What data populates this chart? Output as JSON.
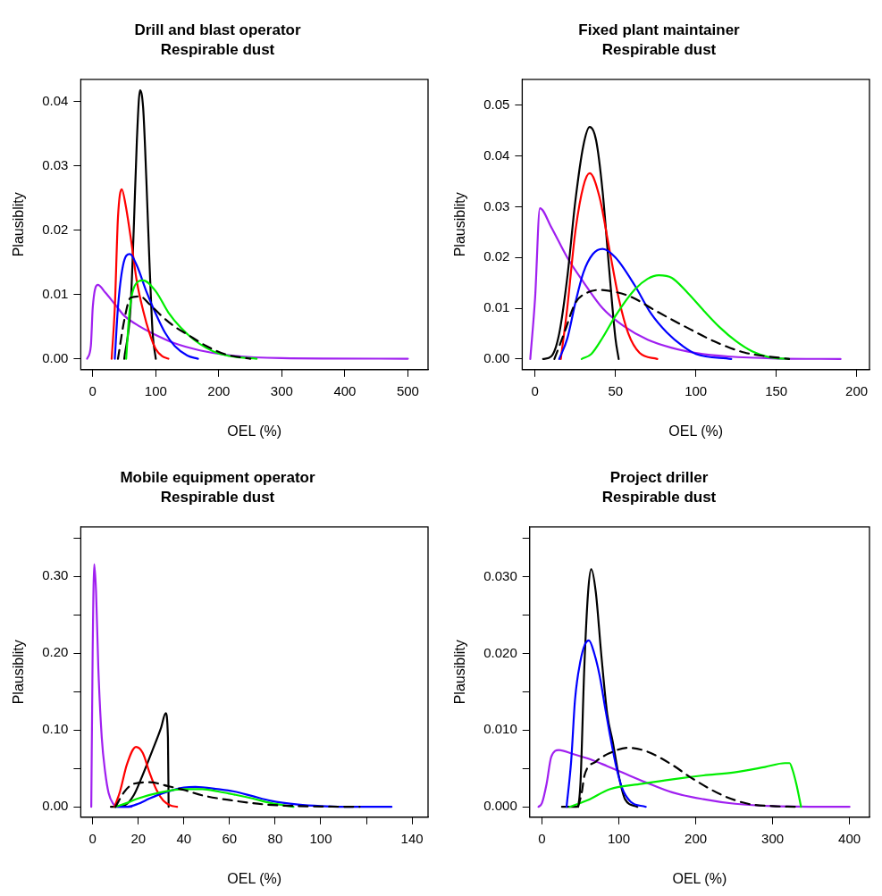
{
  "chart_data": [
    {
      "type": "line",
      "title": "Drill and blast operator",
      "subtitle": "Respirable dust",
      "xlabel": "OEL (%)",
      "ylabel": "Plausiblity",
      "marker": "none",
      "legend": false,
      "xlim": [
        -19,
        532
      ],
      "ylim": [
        -0.0017,
        0.0435
      ],
      "xticks": [
        0,
        100,
        200,
        300,
        400,
        500
      ],
      "yticks": [
        {
          "value": 0,
          "label": "0.00"
        },
        {
          "value": 0.01,
          "label": "0.01"
        },
        {
          "value": 0.02,
          "label": "0.02"
        },
        {
          "value": 0.03,
          "label": "0.03"
        },
        {
          "value": 0.04,
          "label": "0.04"
        }
      ],
      "series": [
        {
          "color": "#000000",
          "line_style": "dashed",
          "x": [
            40,
            50,
            60,
            75,
            90,
            110,
            130,
            150,
            180,
            210,
            250
          ],
          "values": [
            0,
            0.006,
            0.0095,
            0.0097,
            0.0085,
            0.0066,
            0.005,
            0.0038,
            0.002,
            0.0007,
            0
          ]
        },
        {
          "color": "#00ee00",
          "x": [
            53,
            58,
            65,
            80,
            100,
            120,
            140,
            160,
            180,
            200,
            225,
            260
          ],
          "values": [
            0,
            0.007,
            0.011,
            0.0122,
            0.0105,
            0.0072,
            0.0048,
            0.003,
            0.0017,
            0.0008,
            0.0003,
            0
          ]
        },
        {
          "color": "#0000ff",
          "x": [
            35,
            40,
            48,
            59,
            70,
            85,
            100,
            115,
            130,
            150,
            167
          ],
          "values": [
            0,
            0.008,
            0.0145,
            0.0163,
            0.0145,
            0.0105,
            0.007,
            0.004,
            0.002,
            0.0005,
            0
          ]
        },
        {
          "color": "#ff0000",
          "x": [
            30,
            35,
            40,
            46,
            52,
            60,
            70,
            80,
            90,
            100,
            110,
            120
          ],
          "values": [
            0,
            0.008,
            0.022,
            0.0264,
            0.024,
            0.019,
            0.012,
            0.0075,
            0.004,
            0.0015,
            0.0004,
            0
          ]
        },
        {
          "color": "#000000",
          "x": [
            50,
            60,
            65,
            70,
            75,
            80,
            85,
            90,
            95,
            100
          ],
          "values": [
            0,
            0.008,
            0.02,
            0.034,
            0.0418,
            0.039,
            0.028,
            0.015,
            0.004,
            0
          ]
        },
        {
          "color": "#a020f0",
          "x": [
            -9,
            -3,
            0,
            8,
            20,
            35,
            50,
            75,
            100,
            130,
            170,
            220,
            300,
            500
          ],
          "values": [
            0,
            0.002,
            0.008,
            0.0115,
            0.0103,
            0.0085,
            0.0067,
            0.005,
            0.0037,
            0.0024,
            0.0013,
            0.0005,
            0.0001,
            0
          ]
        }
      ]
    },
    {
      "type": "line",
      "title": "Fixed plant maintainer",
      "subtitle": "Respirable dust",
      "xlabel": "OEL (%)",
      "ylabel": "Plausiblity",
      "marker": "none",
      "legend": false,
      "xlim": [
        -8,
        208
      ],
      "ylim": [
        -0.0021,
        0.0551
      ],
      "xticks": [
        0,
        50,
        100,
        150,
        200
      ],
      "yticks": [
        {
          "value": 0,
          "label": "0.00"
        },
        {
          "value": 0.01,
          "label": "0.01"
        },
        {
          "value": 0.02,
          "label": "0.02"
        },
        {
          "value": 0.03,
          "label": "0.03"
        },
        {
          "value": 0.04,
          "label": "0.04"
        },
        {
          "value": 0.05,
          "label": "0.05"
        }
      ],
      "series": [
        {
          "color": "#000000",
          "line_style": "dashed",
          "x": [
            12,
            18,
            25,
            32,
            40,
            50,
            60,
            75,
            92,
            112,
            130,
            158
          ],
          "values": [
            0,
            0.005,
            0.011,
            0.013,
            0.0136,
            0.0132,
            0.0122,
            0.0095,
            0.0066,
            0.0034,
            0.0013,
            0
          ]
        },
        {
          "color": "#00ee00",
          "x": [
            29,
            35,
            42,
            50,
            62,
            70,
            77,
            85,
            95,
            105,
            115,
            125,
            135,
            145,
            158
          ],
          "values": [
            0,
            0.001,
            0.0042,
            0.0085,
            0.0137,
            0.0158,
            0.0165,
            0.016,
            0.013,
            0.0095,
            0.0062,
            0.0035,
            0.0015,
            0.0004,
            0
          ]
        },
        {
          "color": "#0000ff",
          "x": [
            15,
            20,
            25,
            30,
            36,
            42,
            50,
            62,
            72,
            82,
            92,
            100,
            122
          ],
          "values": [
            0,
            0.004,
            0.011,
            0.017,
            0.0207,
            0.0217,
            0.02,
            0.0145,
            0.009,
            0.0052,
            0.0025,
            0.001,
            0
          ]
        },
        {
          "color": "#ff0000",
          "x": [
            16,
            20,
            25,
            30,
            34,
            40,
            46,
            52,
            58,
            65,
            76
          ],
          "values": [
            0,
            0.01,
            0.025,
            0.034,
            0.0366,
            0.032,
            0.022,
            0.012,
            0.005,
            0.0012,
            0
          ]
        },
        {
          "color": "#000000",
          "x": [
            5,
            10,
            15,
            20,
            25,
            30,
            34,
            38,
            42,
            46,
            50,
            52
          ],
          "values": [
            0,
            0.0005,
            0.005,
            0.016,
            0.031,
            0.042,
            0.0457,
            0.043,
            0.033,
            0.018,
            0.004,
            0
          ]
        },
        {
          "color": "#a020f0",
          "x": [
            -3,
            0,
            3,
            10,
            20,
            30,
            42,
            55,
            70,
            85,
            100,
            120,
            150,
            190
          ],
          "values": [
            0,
            0.012,
            0.0297,
            0.026,
            0.02,
            0.0152,
            0.01,
            0.0065,
            0.0038,
            0.0022,
            0.0012,
            0.0005,
            0.0001,
            0
          ]
        }
      ]
    },
    {
      "type": "line",
      "title": "Mobile equipment operator",
      "subtitle": "Respirable dust",
      "xlabel": "OEL (%)",
      "ylabel": "Plausiblity",
      "marker": "none",
      "legend": false,
      "xlim": [
        -5.2,
        147
      ],
      "ylim": [
        -0.0135,
        0.3645
      ],
      "xticks": [
        0,
        20,
        40,
        60,
        80,
        100,
        {
          "value": 120,
          "label": null
        },
        140
      ],
      "yticks": [
        {
          "value": 0,
          "label": "0.00"
        },
        {
          "value": 0.05,
          "label": null
        },
        {
          "value": 0.1,
          "label": "0.10"
        },
        {
          "value": 0.15,
          "label": null
        },
        {
          "value": 0.2,
          "label": "0.20"
        },
        {
          "value": 0.25,
          "label": null
        },
        {
          "value": 0.3,
          "label": "0.30"
        },
        {
          "value": 0.35,
          "label": null
        }
      ],
      "series": [
        {
          "color": "#000000",
          "line_style": "dashed",
          "x": [
            10,
            14,
            18,
            25,
            33,
            40,
            48,
            62,
            76,
            90,
            117
          ],
          "values": [
            0,
            0.02,
            0.03,
            0.032,
            0.027,
            0.022,
            0.015,
            0.008,
            0.003,
            0.001,
            0
          ]
        },
        {
          "color": "#00ee00",
          "x": [
            10,
            15,
            20,
            30,
            40,
            48,
            55,
            62,
            70,
            78,
            88
          ],
          "values": [
            0,
            0.005,
            0.011,
            0.019,
            0.023,
            0.023,
            0.02,
            0.016,
            0.011,
            0.005,
            0
          ]
        },
        {
          "color": "#0000ff",
          "x": [
            10,
            15,
            20,
            25,
            32,
            40,
            45,
            55,
            62,
            70,
            78,
            90,
            100,
            115,
            131
          ],
          "values": [
            0,
            0,
            0.004,
            0.011,
            0.019,
            0.025,
            0.026,
            0.023,
            0.02,
            0.014,
            0.008,
            0.003,
            0.001,
            0,
            0
          ]
        },
        {
          "color": "#ff0000",
          "x": [
            9.6,
            12,
            15,
            19,
            22,
            25,
            28,
            31,
            34,
            37
          ],
          "values": [
            0,
            0.02,
            0.055,
            0.078,
            0.07,
            0.044,
            0.022,
            0.008,
            0.002,
            0
          ]
        },
        {
          "color": "#000000",
          "x": [
            8,
            14,
            18,
            22,
            26,
            30,
            32,
            33,
            33.3
          ],
          "values": [
            0,
            0.002,
            0.015,
            0.042,
            0.072,
            0.103,
            0.122,
            0.09,
            0
          ]
        },
        {
          "color": "#a020f0",
          "x": [
            -0.6,
            0,
            0.7,
            1.5,
            2.5,
            4,
            5.5,
            7,
            9,
            11,
            17
          ],
          "values": [
            0,
            0.2,
            0.316,
            0.28,
            0.18,
            0.09,
            0.045,
            0.018,
            0.004,
            0,
            0
          ]
        }
      ]
    },
    {
      "type": "line",
      "title": "Project driller",
      "subtitle": "Respirable dust",
      "xlabel": "OEL (%)",
      "ylabel": "Plausiblity",
      "marker": "none",
      "legend": false,
      "xlim": [
        -16,
        426
      ],
      "ylim": [
        -0.00135,
        0.0365
      ],
      "xticks": [
        0,
        100,
        200,
        300,
        400
      ],
      "yticks": [
        {
          "value": 0,
          "label": "0.000"
        },
        {
          "value": 0.005,
          "label": null
        },
        {
          "value": 0.01,
          "label": "0.010"
        },
        {
          "value": 0.015,
          "label": null
        },
        {
          "value": 0.02,
          "label": "0.020"
        },
        {
          "value": 0.025,
          "label": null
        },
        {
          "value": 0.03,
          "label": "0.030"
        },
        {
          "value": 0.035,
          "label": null
        }
      ],
      "series": [
        {
          "color": "#000000",
          "line_style": "dashed",
          "x": [
            47,
            52,
            55,
            70,
            88,
            112,
            137,
            169,
            194,
            235,
            268,
            300,
            329
          ],
          "values": [
            0,
            0.002,
            0.004,
            0.0059,
            0.007,
            0.0077,
            0.0072,
            0.0055,
            0.0038,
            0.0015,
            0.0004,
            0.0001,
            0
          ]
        },
        {
          "color": "#00ee00",
          "x": [
            36,
            60,
            88,
            130,
            170,
            210,
            250,
            290,
            316,
            322,
            326,
            331,
            337
          ],
          "values": [
            0,
            0.0009,
            0.0023,
            0.003,
            0.0036,
            0.0041,
            0.0045,
            0.0052,
            0.0057,
            0.0057,
            0.0048,
            0.0029,
            0
          ]
        },
        {
          "color": "#0000ff",
          "x": [
            32,
            38,
            43,
            50,
            56,
            61,
            68,
            75,
            82,
            88,
            96,
            104,
            115,
            135
          ],
          "values": [
            0,
            0.006,
            0.014,
            0.019,
            0.0212,
            0.0217,
            0.02,
            0.0171,
            0.013,
            0.0096,
            0.0055,
            0.0025,
            0.0007,
            0
          ]
        },
        {
          "color": "#000000",
          "x": [
            26,
            45,
            50,
            55,
            60,
            64,
            70,
            77,
            85,
            92,
            100,
            108,
            124
          ],
          "values": [
            0,
            0,
            0.003,
            0.018,
            0.028,
            0.031,
            0.028,
            0.02,
            0.012,
            0.0085,
            0.004,
            0.001,
            0
          ]
        },
        {
          "color": "#a020f0",
          "x": [
            -4.5,
            0,
            6,
            12,
            22,
            40,
            63,
            85,
            104,
            135,
            169,
            210,
            251,
            300,
            400
          ],
          "values": [
            0,
            0.0005,
            0.003,
            0.0065,
            0.0074,
            0.0069,
            0.0062,
            0.0053,
            0.0045,
            0.0032,
            0.0019,
            0.001,
            0.0004,
            0.0001,
            0
          ]
        }
      ]
    }
  ]
}
